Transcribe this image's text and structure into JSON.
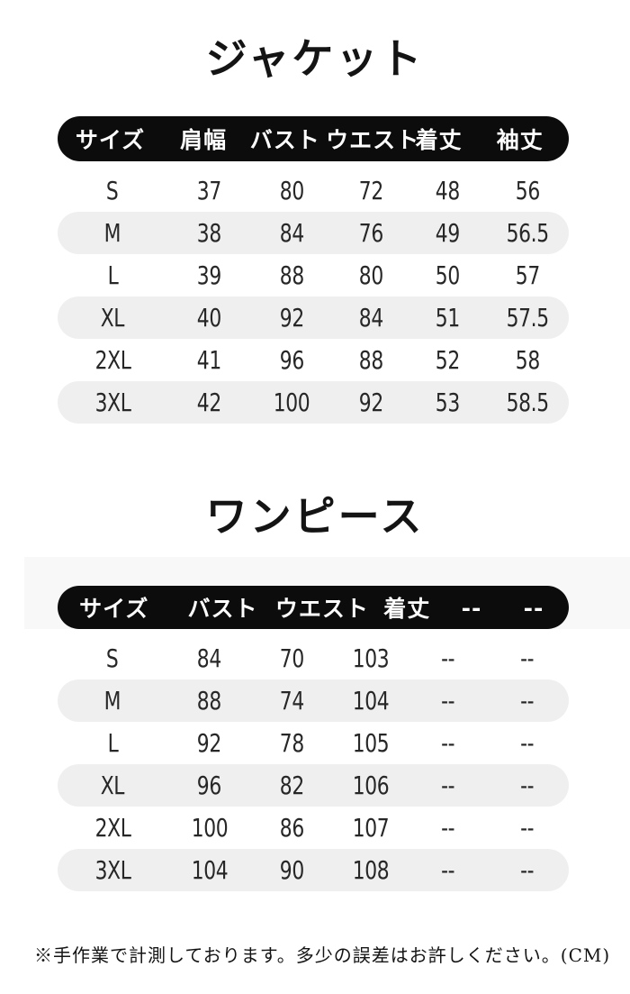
{
  "note": "※手作業で計測しております。多少の誤差はお許しください。(CM)",
  "colors": {
    "background": "#ffffff",
    "header_bg": "#0c0c0c",
    "header_text": "#ffffff",
    "row_alt_bg": "#efefef",
    "value_text": "#272727"
  },
  "tables": [
    {
      "title": "ジャケット",
      "headers": [
        "サイズ",
        "肩幅",
        "バスト",
        "ウエスト",
        "着丈",
        "袖丈"
      ],
      "rows": [
        [
          "S",
          "37",
          "80",
          "72",
          "48",
          "56"
        ],
        [
          "M",
          "38",
          "84",
          "76",
          "49",
          "56.5"
        ],
        [
          "L",
          "39",
          "88",
          "80",
          "50",
          "57"
        ],
        [
          "XL",
          "40",
          "92",
          "84",
          "51",
          "57.5"
        ],
        [
          "2XL",
          "41",
          "96",
          "88",
          "52",
          "58"
        ],
        [
          "3XL",
          "42",
          "100",
          "92",
          "53",
          "58.5"
        ]
      ]
    },
    {
      "title": "ワンピース",
      "headers": [
        "サイズ",
        "バスト",
        "ウエスト",
        "着丈",
        "--",
        "--"
      ],
      "rows": [
        [
          "S",
          "84",
          "70",
          "103",
          "--",
          "--"
        ],
        [
          "M",
          "88",
          "74",
          "104",
          "--",
          "--"
        ],
        [
          "L",
          "92",
          "78",
          "105",
          "--",
          "--"
        ],
        [
          "XL",
          "96",
          "82",
          "106",
          "--",
          "--"
        ],
        [
          "2XL",
          "100",
          "86",
          "107",
          "--",
          "--"
        ],
        [
          "3XL",
          "104",
          "90",
          "108",
          "--",
          "--"
        ]
      ]
    }
  ]
}
